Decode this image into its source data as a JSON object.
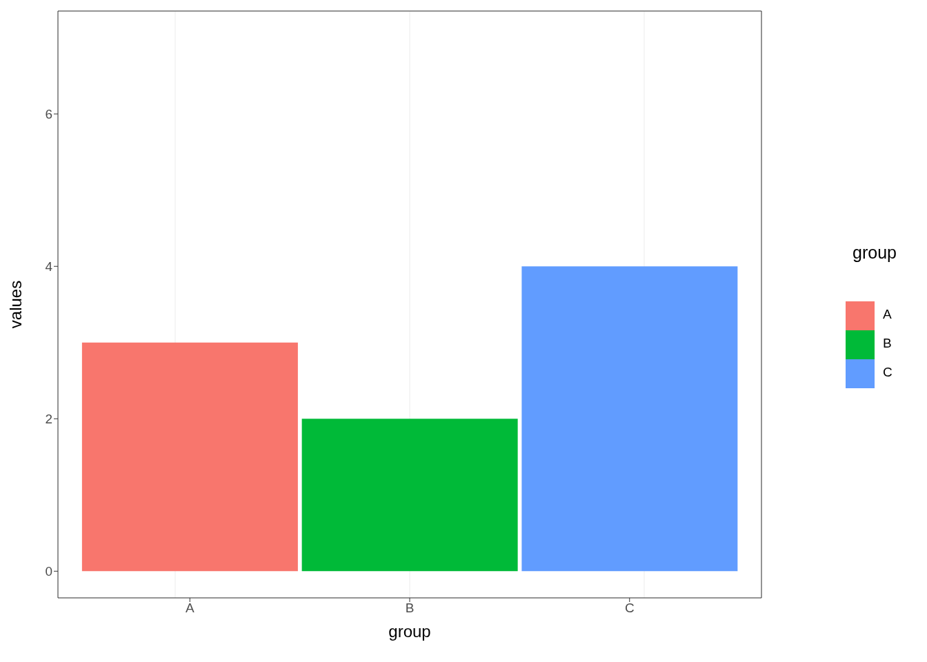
{
  "chart_data": {
    "type": "bar",
    "xlabel": "group",
    "ylabel": "values",
    "legend_title": "group",
    "categories": [
      "A",
      "B",
      "C"
    ],
    "stacked": true,
    "series": [
      {
        "name": "A",
        "color": "#f8766d",
        "values": [
          3,
          null,
          null
        ]
      },
      {
        "name": "B",
        "color": "#00ba38",
        "values": [
          null,
          2,
          null
        ]
      },
      {
        "name": "C",
        "color": "#619cff",
        "values": [
          null,
          null,
          4
        ]
      }
    ],
    "ylim": [
      -0.35,
      7.35
    ],
    "yticks": [
      0,
      2,
      4,
      6
    ],
    "grid": true,
    "legend": "right"
  }
}
